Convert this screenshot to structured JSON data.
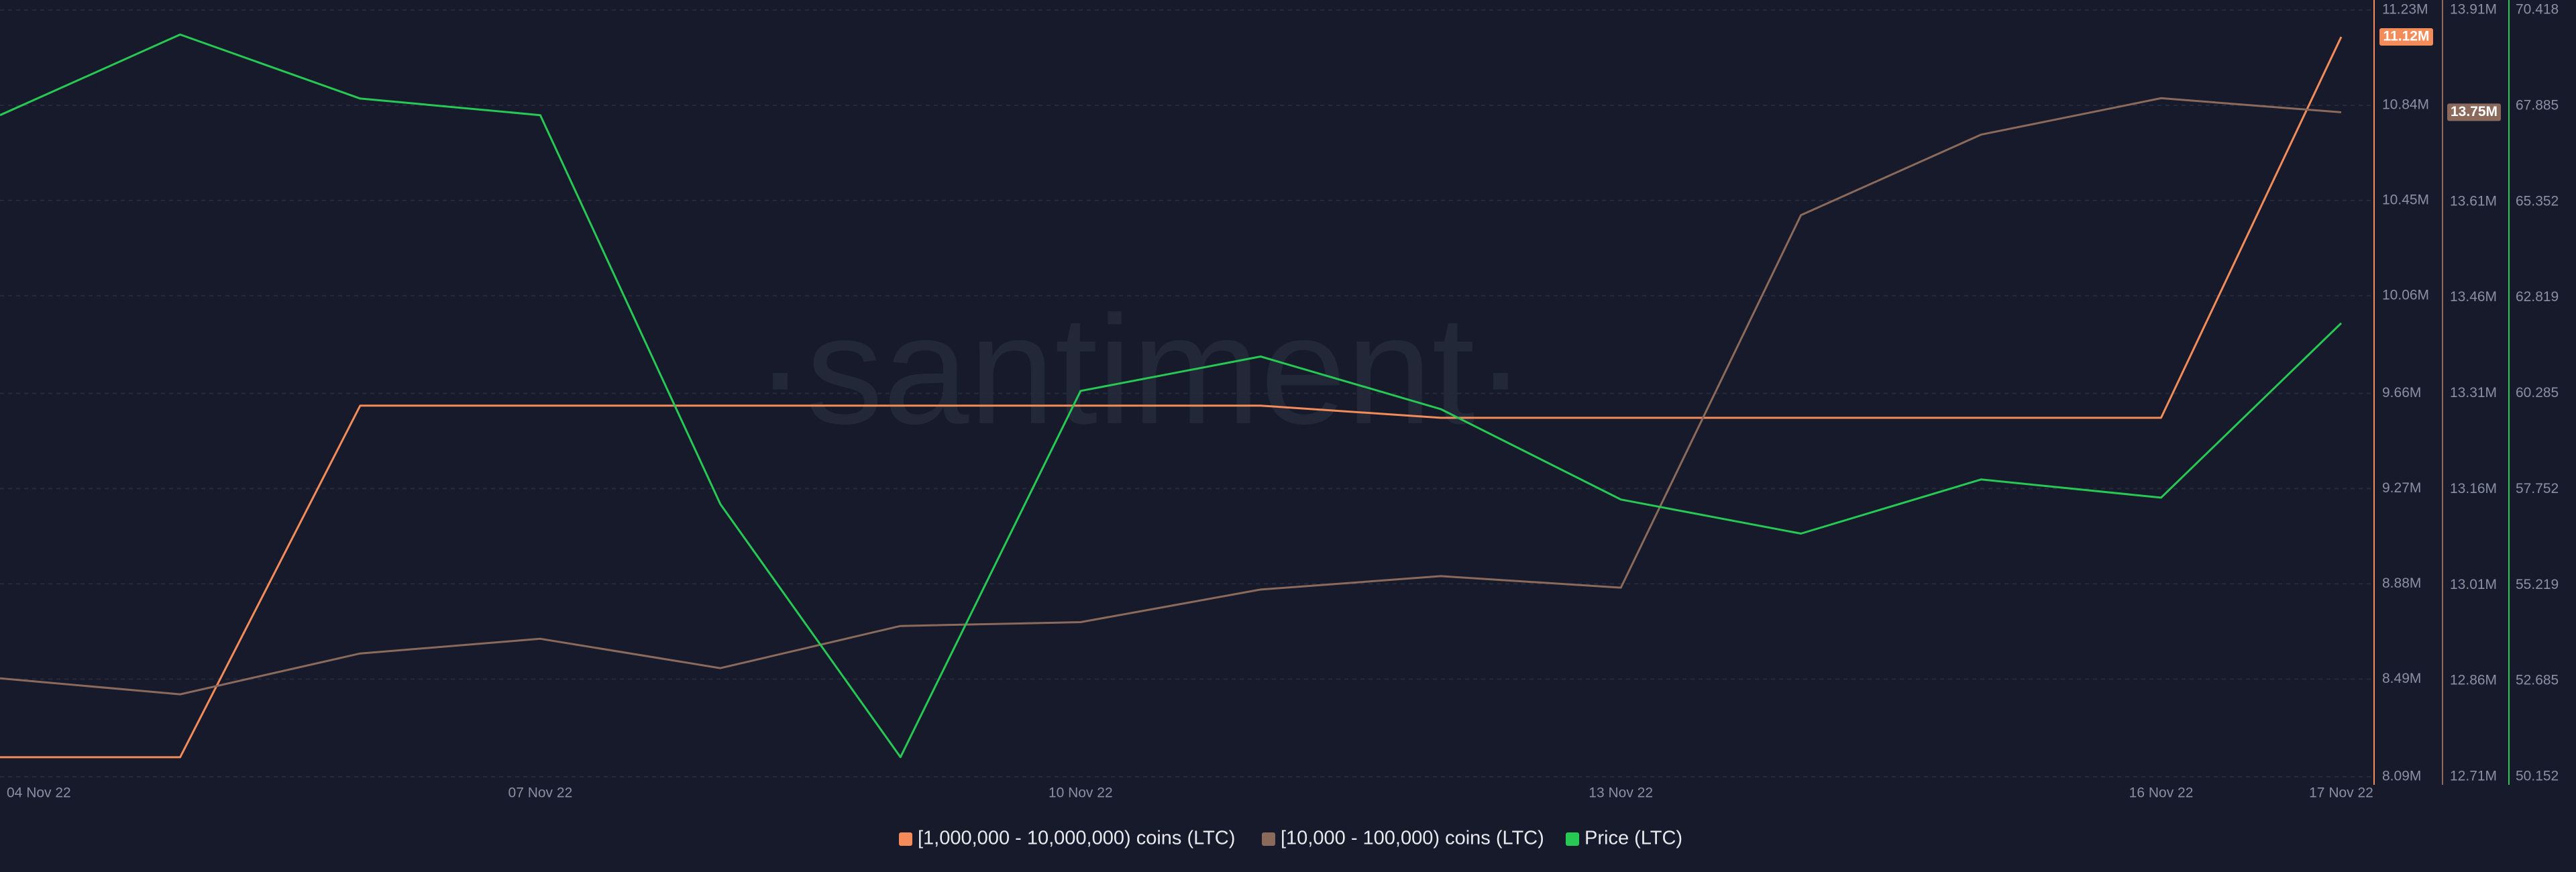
{
  "chart_data": {
    "type": "line",
    "watermark": "·santiment·",
    "categories": [
      "04 Nov 22",
      null,
      null,
      "07 Nov 22",
      null,
      null,
      "10 Nov 22",
      null,
      null,
      "13 Nov 22",
      null,
      null,
      "16 Nov 22",
      "17 Nov 22"
    ],
    "ylim": [
      8090000,
      11230000
    ],
    "yticks": [
      {
        "value": 8090000,
        "label": "8.09M"
      },
      {
        "value": 8490000,
        "label": "8.49M"
      },
      {
        "value": 8880000,
        "label": "8.88M"
      },
      {
        "value": 9270000,
        "label": "9.27M"
      },
      {
        "value": 9660000,
        "label": "9.66M"
      },
      {
        "value": 10060000,
        "label": "10.06M"
      },
      {
        "value": 10450000,
        "label": "10.45M"
      },
      {
        "value": 10840000,
        "label": "10.84M"
      },
      {
        "value": 11230000,
        "label": "11.23M"
      }
    ],
    "y2lim": [
      12710000,
      13910000
    ],
    "y2ticks": [
      {
        "value": 12710000,
        "label": "12.71M"
      },
      {
        "value": 12860000,
        "label": "12.86M"
      },
      {
        "value": 13010000,
        "label": "13.01M"
      },
      {
        "value": 13160000,
        "label": "13.16M"
      },
      {
        "value": 13310000,
        "label": "13.31M"
      },
      {
        "value": 13460000,
        "label": "13.46M"
      },
      {
        "value": 13610000,
        "label": "13.61M"
      },
      {
        "value": 13910000,
        "label": "13.91M"
      }
    ],
    "y3lim": [
      50.152,
      70.418
    ],
    "y3ticks": [
      50.152,
      52.685,
      55.219,
      57.752,
      60.285,
      62.819,
      65.352,
      67.885,
      70.418
    ],
    "grid": true,
    "legend": "bottom",
    "series": [
      {
        "name": "[1,000,000 - 10,000,000) coins (LTC)",
        "color": "#f48c5a",
        "axis": "y",
        "values": [
          8170000,
          8170000,
          9610000,
          9610000,
          9610000,
          9610000,
          9610000,
          9610000,
          9560000,
          9560000,
          9560000,
          9560000,
          9560000,
          11120000
        ],
        "value_labels": [
          null,
          null,
          null,
          null,
          null,
          null,
          null,
          null,
          null,
          null,
          null,
          null,
          null,
          "11.12M"
        ]
      },
      {
        "name": "[10,000 - 100,000) coins (LTC)",
        "color": "#8b6a5c",
        "axis": "y2",
        "values": [
          12864000,
          12839000,
          12903000,
          12926000,
          12880000,
          12946000,
          12952000,
          13003000,
          13024000,
          13006000,
          13589000,
          13715000,
          13772000,
          13750000
        ],
        "value_labels": [
          null,
          null,
          null,
          null,
          null,
          null,
          null,
          null,
          null,
          null,
          null,
          null,
          null,
          "13.75M"
        ]
      },
      {
        "name": "Price (LTC)",
        "color": "#26c953",
        "axis": "y3",
        "values": [
          67.64,
          69.77,
          68.08,
          67.64,
          57.36,
          50.67,
          60.35,
          61.26,
          59.87,
          57.48,
          56.58,
          58.01,
          57.53,
          62.141
        ]
      }
    ]
  }
}
